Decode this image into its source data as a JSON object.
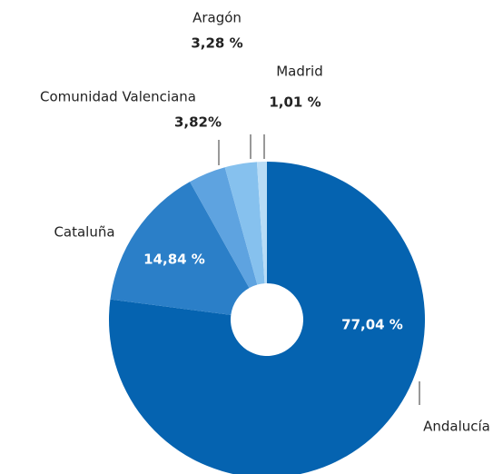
{
  "chart_data": {
    "type": "donut",
    "categories": [
      "Andalucía",
      "Cataluña",
      "Comunidad Valenciana",
      "Aragón",
      "Madrid"
    ],
    "values": [
      77.04,
      14.84,
      3.82,
      3.28,
      1.01
    ],
    "value_labels": [
      "77,04 %",
      "14,84 %",
      "3,82%",
      "3,28 %",
      "1,01 %"
    ],
    "colors": [
      "#0563b0",
      "#2b7fc8",
      "#5ea3e0",
      "#86c1ee",
      "#b8dcf6"
    ]
  }
}
